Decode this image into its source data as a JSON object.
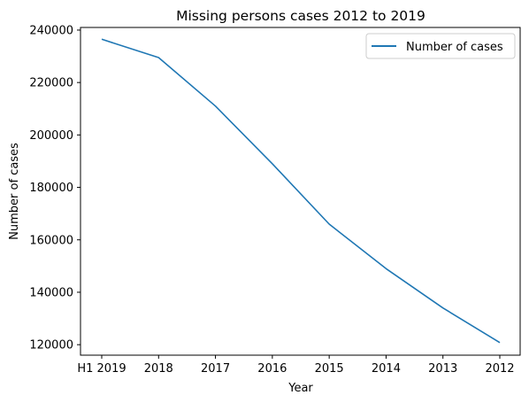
{
  "chart_data": {
    "type": "line",
    "title": "Missing persons cases 2012 to 2019",
    "xlabel": "Year",
    "ylabel": "Number of cases",
    "categories": [
      "H1 2019",
      "2018",
      "2017",
      "2016",
      "2015",
      "2014",
      "2013",
      "2012"
    ],
    "series": [
      {
        "name": "Number of cases",
        "color": "#1f77b4",
        "values": [
          236500,
          229500,
          211000,
          189000,
          166000,
          149000,
          134000,
          120800
        ]
      }
    ],
    "ylim": [
      116000,
      241000
    ],
    "yticks": [
      120000,
      140000,
      160000,
      180000,
      200000,
      220000,
      240000
    ],
    "grid": false,
    "legend": "top-right"
  }
}
